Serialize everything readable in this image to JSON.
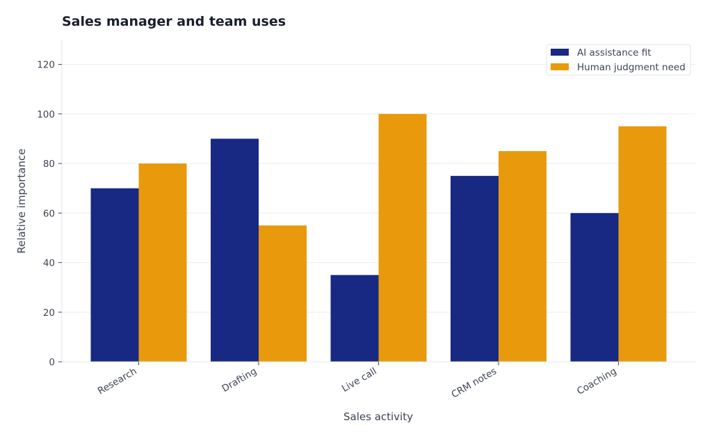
{
  "chart_data": {
    "type": "bar",
    "title": "Sales manager and team uses",
    "xlabel": "Sales activity",
    "ylabel": "Relative importance",
    "categories": [
      "Research",
      "Drafting",
      "Live call",
      "CRM notes",
      "Coaching"
    ],
    "series": [
      {
        "name": "AI assistance fit",
        "values": [
          70,
          90,
          35,
          75,
          60
        ],
        "color": "#172983"
      },
      {
        "name": "Human judgment need",
        "values": [
          80,
          55,
          100,
          85,
          95
        ],
        "color": "#e89a0c"
      }
    ],
    "ylim": [
      0,
      130
    ],
    "yticks": [
      0,
      20,
      40,
      60,
      80,
      100,
      120
    ],
    "grid": "horizontal",
    "legend_position": "top-right"
  }
}
